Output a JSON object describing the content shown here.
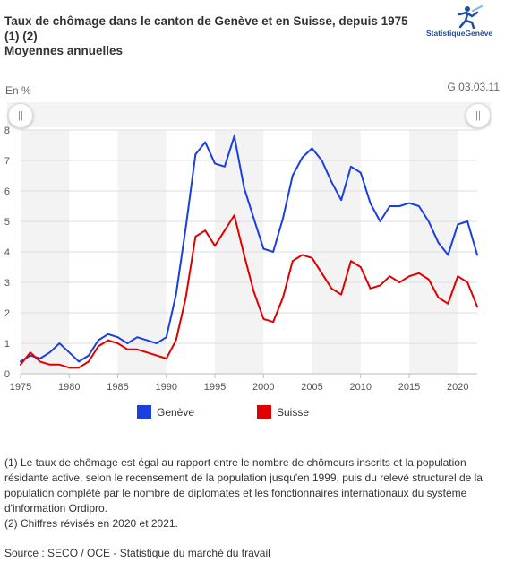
{
  "header": {
    "title_line1": "Taux de chômage dans le canton de Genève et en Suisse, depuis 1975",
    "title_line2": "(1) (2)",
    "subtitle": "Moyennes annuelles",
    "logo_text": "StatistiqueGenève",
    "unit": "En %",
    "code": "G 03.03.11"
  },
  "navigator": {
    "left_handle": "||",
    "right_handle": "||"
  },
  "chart_data": {
    "type": "line",
    "x": [
      1975,
      1976,
      1977,
      1978,
      1979,
      1980,
      1981,
      1982,
      1983,
      1984,
      1985,
      1986,
      1987,
      1988,
      1989,
      1990,
      1991,
      1992,
      1993,
      1994,
      1995,
      1996,
      1997,
      1998,
      1999,
      2000,
      2001,
      2002,
      2003,
      2004,
      2005,
      2006,
      2007,
      2008,
      2009,
      2010,
      2011,
      2012,
      2013,
      2014,
      2015,
      2016,
      2017,
      2018,
      2019,
      2020,
      2021,
      2022
    ],
    "series": [
      {
        "name": "Genève",
        "color": "#1a3fe0",
        "values": [
          0.4,
          0.6,
          0.5,
          0.7,
          1.0,
          0.7,
          0.4,
          0.6,
          1.1,
          1.3,
          1.2,
          1.0,
          1.2,
          1.1,
          1.0,
          1.2,
          2.6,
          4.8,
          7.2,
          7.6,
          6.9,
          6.8,
          7.8,
          6.1,
          5.1,
          4.1,
          4.0,
          5.1,
          6.5,
          7.1,
          7.4,
          7.0,
          6.3,
          5.7,
          6.8,
          6.6,
          5.6,
          5.0,
          5.5,
          5.5,
          5.6,
          5.5,
          5.0,
          4.3,
          3.9,
          4.9,
          5.0,
          3.9
        ]
      },
      {
        "name": "Suisse",
        "color": "#e00000",
        "values": [
          0.3,
          0.7,
          0.4,
          0.3,
          0.3,
          0.2,
          0.2,
          0.4,
          0.9,
          1.1,
          1.0,
          0.8,
          0.8,
          0.7,
          0.6,
          0.5,
          1.1,
          2.5,
          4.5,
          4.7,
          4.2,
          4.7,
          5.2,
          3.9,
          2.7,
          1.8,
          1.7,
          2.5,
          3.7,
          3.9,
          3.8,
          3.3,
          2.8,
          2.6,
          3.7,
          3.5,
          2.8,
          2.9,
          3.2,
          3.0,
          3.2,
          3.3,
          3.1,
          2.5,
          2.3,
          3.2,
          3.0,
          2.2
        ]
      }
    ],
    "ylim": [
      0,
      8
    ],
    "xlim": [
      1975,
      2022
    ],
    "y_ticks": [
      "0",
      "1",
      "2",
      "3",
      "4",
      "5",
      "6",
      "7",
      "8"
    ],
    "x_ticks": [
      "1975",
      "1980",
      "1985",
      "1990",
      "1995",
      "2000",
      "2005",
      "2010",
      "2015",
      "2020"
    ],
    "grid": true,
    "legend_position": "bottom-left"
  },
  "notes": [
    "(1) Le taux de chômage est égal au rapport entre le nombre de chômeurs inscrits et la population résidante active, selon le recensement de la population jusqu'en 1999, puis du relevé structurel de la population complété par le nombre de diplomates et les fonctionnaires internationaux du système d'information Ordipro.",
    "(2) Chiffres révisés en 2020 et 2021."
  ],
  "source": "Source : SECO / OCE - Statistique du marché du travail"
}
